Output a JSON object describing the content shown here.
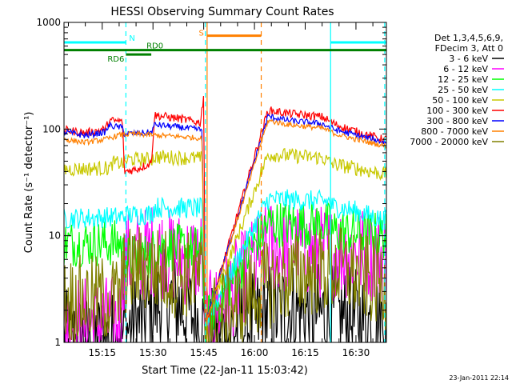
{
  "chart_data": {
    "type": "line",
    "title": "HESSI Observing Summary Count Rates",
    "xlabel": "Start Time (22-Jan-11 15:03:42)",
    "ylabel": "Count Rate (s⁻¹ detector⁻¹)",
    "y_scale": "log",
    "ylim": [
      1,
      1000
    ],
    "xlim": [
      "15:03:42",
      "16:39:00"
    ],
    "x_ticks": [
      "15:15",
      "15:30",
      "15:45",
      "16:00",
      "16:15",
      "16:30"
    ],
    "y_ticks": [
      "1",
      "10",
      "100",
      "1000"
    ],
    "legend": {
      "placement": "right",
      "header": [
        "Det 1,3,4,5,6,9,",
        "FDecim 3, Att 0"
      ],
      "entries": [
        {
          "label": "3 - 6 keV",
          "color": "#000000"
        },
        {
          "label": "6 - 12 keV",
          "color": "#ff00ff"
        },
        {
          "label": "12 - 25 keV",
          "color": "#00ff00"
        },
        {
          "label": "25 - 50 keV",
          "color": "#00ffff"
        },
        {
          "label": "50 - 100 keV",
          "color": "#c8c800"
        },
        {
          "label": "100 - 300 keV",
          "color": "#ff0000"
        },
        {
          "label": "300 - 800 keV",
          "color": "#0000ff"
        },
        {
          "label": "800 - 7000 keV",
          "color": "#ff8000"
        },
        {
          "label": "7000 - 20000 keV",
          "color": "#808000"
        }
      ]
    },
    "flags": [
      {
        "label": "N",
        "color": "#00ffff",
        "y": 650,
        "segments": [
          [
            "15:03:42",
            "15:22:00"
          ],
          [
            "16:22:30",
            "16:39:00"
          ]
        ]
      },
      {
        "label": "RD0",
        "color": "#008000",
        "y": 550,
        "segments": [
          [
            "15:03:42",
            "16:39:00"
          ]
        ]
      },
      {
        "label": "RD6",
        "color": "#008000",
        "y": 500,
        "segments": [
          [
            "15:22:00",
            "15:29:30"
          ]
        ]
      },
      {
        "label": "S",
        "color": "#ff8000",
        "y": 750,
        "segments": [
          [
            "15:46:00",
            "16:02:00"
          ]
        ]
      }
    ],
    "boundaries": [
      {
        "time": "15:22:00",
        "color": "#00ffff",
        "style": "dashed"
      },
      {
        "time": "15:45:30",
        "color": "#00ffff",
        "style": "dashed"
      },
      {
        "time": "15:46:00",
        "color": "#ff8000",
        "style": "solid"
      },
      {
        "time": "16:02:00",
        "color": "#ff8000",
        "style": "dashed"
      },
      {
        "time": "16:22:30",
        "color": "#00ffff",
        "style": "solid"
      },
      {
        "time": "16:38:30",
        "color": "#00ffff",
        "style": "dashed"
      }
    ],
    "series": [
      {
        "name": "3 - 6 keV",
        "color": "#000000",
        "noise": 1.0,
        "x": [
          "15:03:42",
          "15:20:30",
          "15:21:30",
          "15:27:00",
          "15:30:00",
          "15:35:00",
          "15:40:00",
          "15:44:30",
          "15:45:30",
          "16:04:00",
          "16:10:00",
          "16:20:00",
          "16:30:00",
          "16:38:00"
        ],
        "y": [
          1,
          1,
          1.3,
          1.6,
          2.2,
          2.5,
          2.0,
          1.5,
          1,
          1.8,
          2.0,
          1.8,
          1.6,
          1.5
        ]
      },
      {
        "name": "6 - 12 keV",
        "color": "#ff00ff",
        "noise": 0.9,
        "x": [
          "15:03:42",
          "15:12:00",
          "15:20:30",
          "15:21:30",
          "15:27:00",
          "15:30:00",
          "15:35:00",
          "15:40:00",
          "15:44:30",
          "15:45:30",
          "16:04:00",
          "16:10:00",
          "16:20:00",
          "16:30:00",
          "16:38:00"
        ],
        "y": [
          1.6,
          1.5,
          1.6,
          6,
          6.5,
          7.5,
          6.5,
          6,
          6.5,
          1.5,
          8,
          7.5,
          7,
          7,
          6.5
        ]
      },
      {
        "name": "12 - 25 keV",
        "color": "#00ff00",
        "noise": 0.45,
        "x": [
          "15:03:42",
          "15:20:30",
          "15:21:30",
          "15:29:30",
          "15:30:30",
          "15:44:30",
          "15:45:30",
          "16:04:00",
          "16:22:00",
          "16:23:00",
          "16:38:00"
        ],
        "y": [
          8.5,
          8.5,
          6,
          6.5,
          8,
          7.5,
          1.5,
          13,
          12.5,
          11,
          10
        ]
      },
      {
        "name": "25 - 50 keV",
        "color": "#00ffff",
        "noise": 0.2,
        "x": [
          "15:03:42",
          "15:20:30",
          "15:21:30",
          "15:29:30",
          "15:30:30",
          "15:44:30",
          "15:45:30",
          "16:04:00",
          "16:22:00",
          "16:23:00",
          "16:30:00",
          "16:38:00"
        ],
        "y": [
          14.5,
          15,
          15.5,
          16,
          18.5,
          18,
          1.5,
          22,
          21,
          19,
          17,
          14
        ]
      },
      {
        "name": "50 - 100 keV",
        "color": "#c8c800",
        "noise": 0.14,
        "x": [
          "15:03:42",
          "15:17:30",
          "15:18:00",
          "15:21:30",
          "15:22:30",
          "15:29:30",
          "15:30:30",
          "15:44:30",
          "15:45:30",
          "16:04:00",
          "16:20:00",
          "16:23:00",
          "16:30:00",
          "16:38:00"
        ],
        "y": [
          42,
          43,
          48,
          48,
          52,
          52,
          55,
          53,
          1.5,
          58,
          54,
          47,
          43,
          38
        ]
      },
      {
        "name": "100 - 300 keV",
        "color": "#ff0000",
        "noise": 0.08,
        "x": [
          "15:03:42",
          "15:10:00",
          "15:16:00",
          "15:17:00",
          "15:21:00",
          "15:21:30",
          "15:25:00",
          "15:29:30",
          "15:30:30",
          "15:38:00",
          "15:44:00",
          "15:45:00",
          "15:45:30",
          "16:04:00",
          "16:10:00",
          "16:20:00",
          "16:24:00",
          "16:30:00",
          "16:38:00"
        ],
        "y": [
          98,
          92,
          100,
          120,
          118,
          40,
          42,
          48,
          135,
          125,
          115,
          210,
          1.5,
          150,
          140,
          130,
          110,
          95,
          80
        ]
      },
      {
        "name": "300 - 800 keV",
        "color": "#0000ff",
        "noise": 0.06,
        "x": [
          "15:03:42",
          "15:10:00",
          "15:16:00",
          "15:17:00",
          "15:21:00",
          "15:21:30",
          "15:29:30",
          "15:30:30",
          "15:38:00",
          "15:44:30",
          "15:45:30",
          "16:04:00",
          "16:10:00",
          "16:20:00",
          "16:24:00",
          "16:30:00",
          "16:38:00"
        ],
        "y": [
          94,
          87,
          94,
          108,
          103,
          90,
          93,
          110,
          104,
          98,
          1.5,
          132,
          120,
          112,
          98,
          88,
          76
        ]
      },
      {
        "name": "800 - 7000 keV",
        "color": "#ff8000",
        "noise": 0.05,
        "x": [
          "15:03:42",
          "15:10:00",
          "15:16:00",
          "15:20:00",
          "15:24:00",
          "15:29:30",
          "15:38:00",
          "15:44:30",
          "15:45:30",
          "16:04:00",
          "16:10:00",
          "16:20:00",
          "16:24:00",
          "16:30:00",
          "16:38:00"
        ],
        "y": [
          80,
          75,
          80,
          88,
          90,
          88,
          85,
          82,
          1.5,
          120,
          110,
          102,
          90,
          80,
          70
        ]
      },
      {
        "name": "7000 - 20000 keV",
        "color": "#808000",
        "noise": 0.85,
        "x": [
          "15:03:42",
          "15:12:00",
          "15:20:30",
          "15:21:30",
          "15:27:00",
          "15:35:00",
          "15:44:30",
          "15:45:30",
          "16:04:00",
          "16:15:00",
          "16:25:00",
          "16:38:00"
        ],
        "y": [
          2.5,
          2.5,
          2.6,
          4.5,
          5.0,
          4.5,
          4.2,
          1.5,
          3.5,
          4.5,
          4.8,
          3.5
        ]
      }
    ]
  },
  "footer": {
    "date_stamp": "23-Jan-2011 22:14"
  }
}
